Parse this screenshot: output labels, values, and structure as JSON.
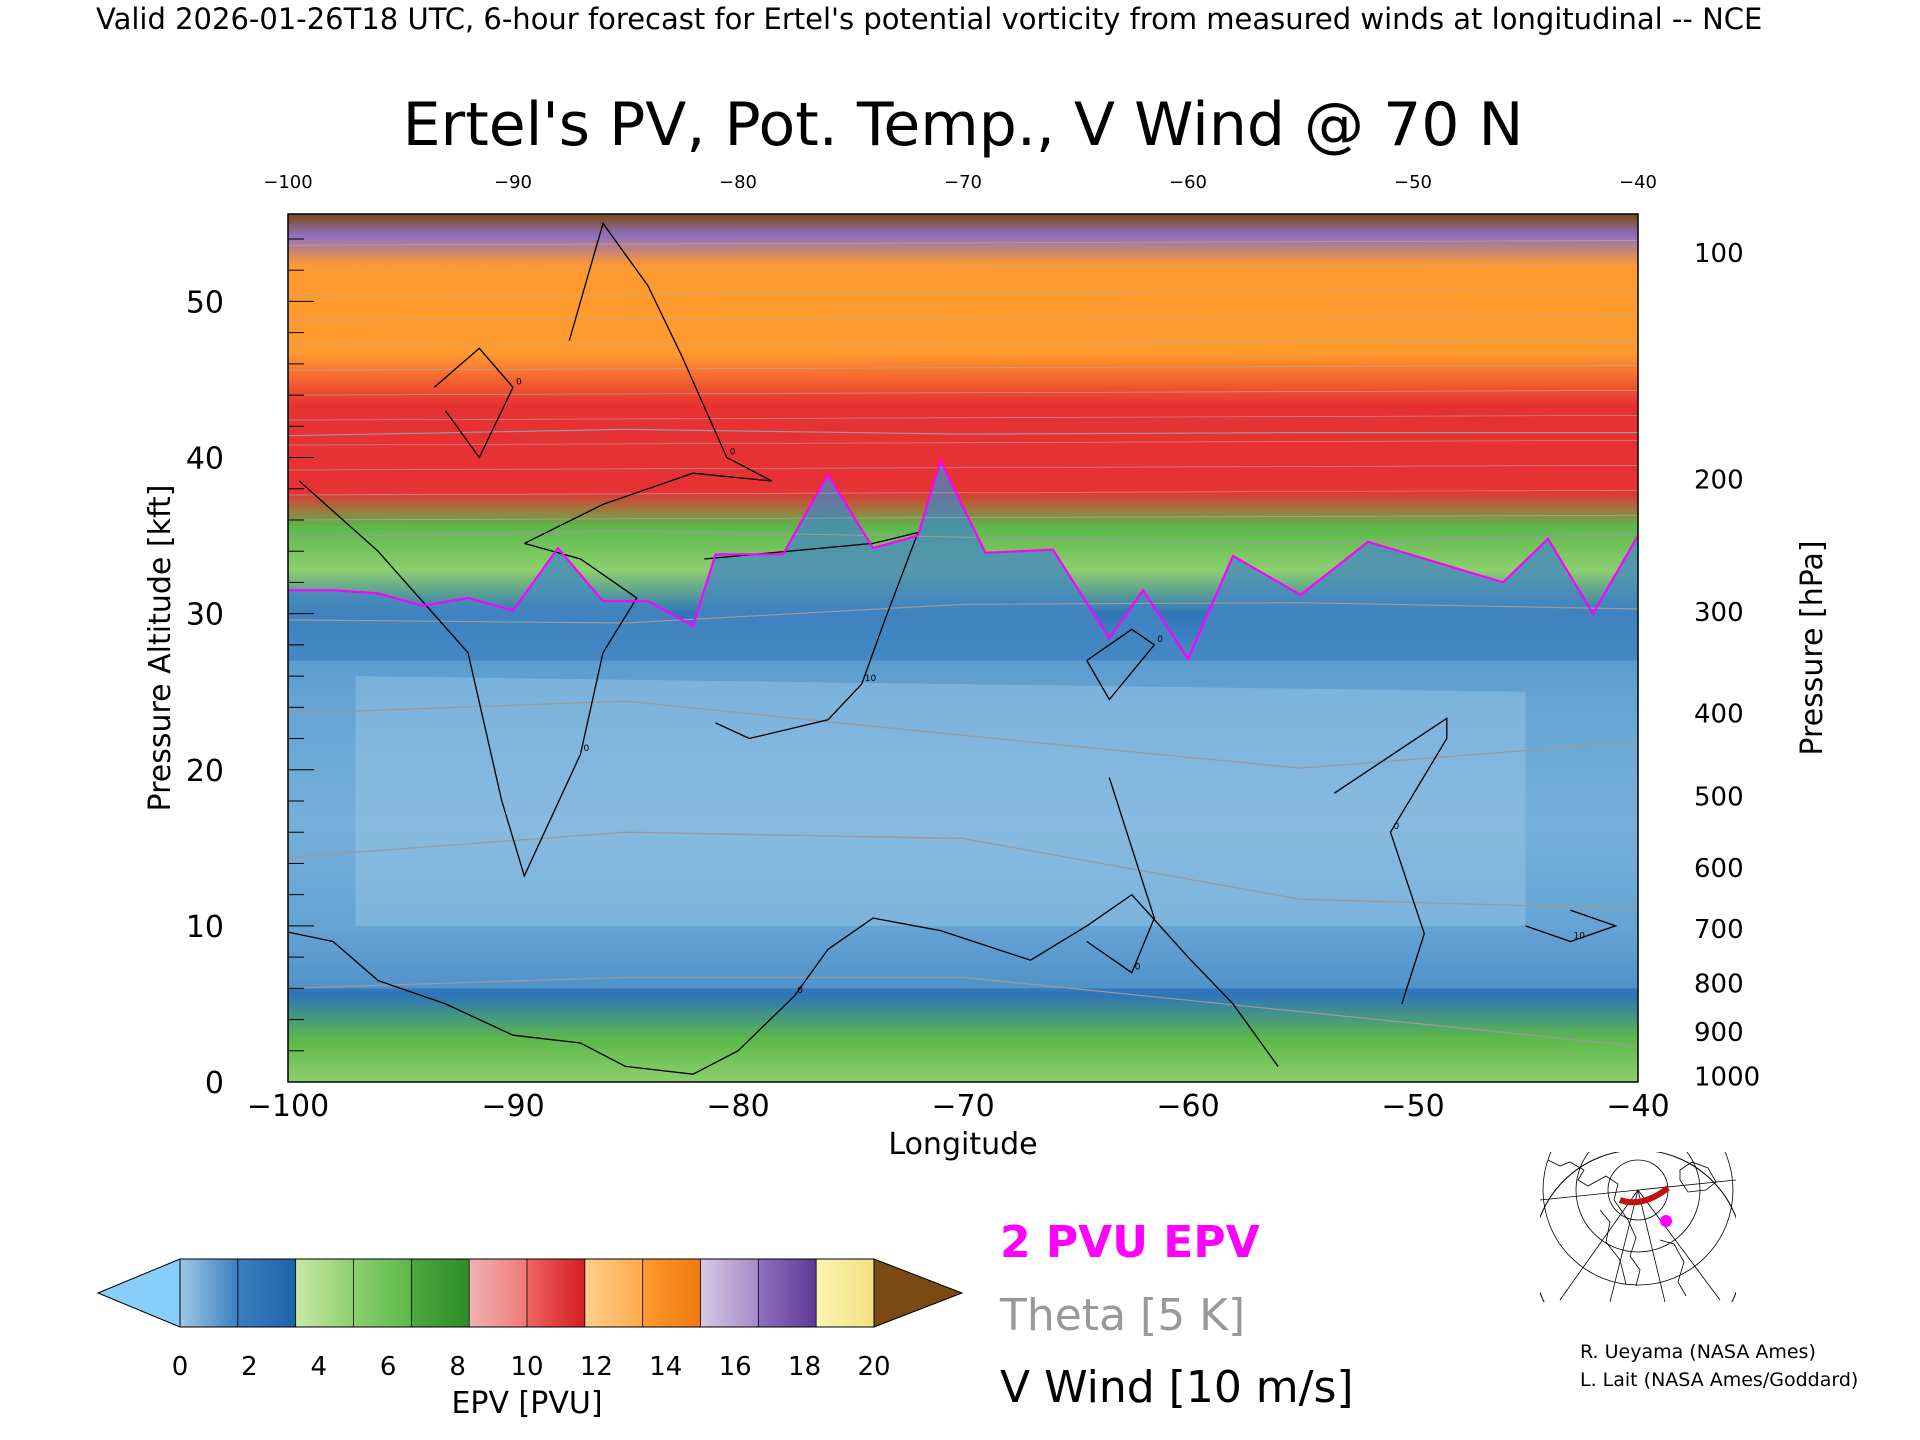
{
  "header": {
    "text": "Valid 2026-01-26T18 UTC, 6-hour forecast for Ertel's potential vorticity from measured winds at longitudinal -- NCE"
  },
  "chart_data": {
    "type": "heatmap",
    "title": "Ertel's PV, Pot. Temp., V Wind @ 70 N",
    "xlabel": "Longitude",
    "ylabel_left": "Pressure Altitude [kft]",
    "ylabel_right": "Pressure [hPa]",
    "xlim": [
      -100,
      -40
    ],
    "ylim_kft": [
      0,
      55.6
    ],
    "x_ticks": [
      "-100",
      "-90",
      "-80",
      "-70",
      "-60",
      "-50",
      "-40"
    ],
    "y_ticks_kft": [
      {
        "value": 0,
        "label": "0"
      },
      {
        "value": 10,
        "label": "10"
      },
      {
        "value": 20,
        "label": "20"
      },
      {
        "value": 30,
        "label": "30"
      },
      {
        "value": 40,
        "label": "40"
      },
      {
        "value": 50,
        "label": "50"
      }
    ],
    "y_ticks_pressure": [
      {
        "kft": 0.35,
        "label": "1000"
      },
      {
        "kft": 3.2,
        "label": "900"
      },
      {
        "kft": 6.3,
        "label": "800"
      },
      {
        "kft": 9.8,
        "label": "700"
      },
      {
        "kft": 13.7,
        "label": "600"
      },
      {
        "kft": 18.3,
        "label": "500"
      },
      {
        "kft": 23.6,
        "label": "400"
      },
      {
        "kft": 30.1,
        "label": "300"
      },
      {
        "kft": 38.6,
        "label": "200"
      },
      {
        "kft": 53.1,
        "label": "100"
      }
    ],
    "colorbar": {
      "label": "EPV [PVU]",
      "ticks": [
        "0",
        "2",
        "4",
        "6",
        "8",
        "10",
        "12",
        "14",
        "16",
        "18",
        "20"
      ],
      "under_color": "#87cefa",
      "over_color": "#7a4a12",
      "bins": [
        [
          "#9cc8e6",
          "#3a7fbf"
        ],
        [
          "#3a7fbf",
          "#1f63a8"
        ],
        [
          "#c9e8a8",
          "#8ccf6e"
        ],
        [
          "#8ccf6e",
          "#5cb84a"
        ],
        [
          "#4ca93c",
          "#2e8c2a"
        ],
        [
          "#f0b2b2",
          "#f07878"
        ],
        [
          "#f06464",
          "#d21e1e"
        ],
        [
          "#ffcf8a",
          "#ffa94d"
        ],
        [
          "#ff9a2e",
          "#f07a10"
        ],
        [
          "#d8c8e6",
          "#a48ac8"
        ],
        [
          "#9070c0",
          "#5c3a96"
        ],
        [
          "#fbf6b4",
          "#f2df82"
        ]
      ]
    },
    "legend": {
      "pv_label": "2 PVU EPV",
      "theta_label": "Theta [5 K]",
      "wind_label": "V Wind [10 m/s]"
    },
    "pv_2pvu_line_kft": [
      [
        -100,
        31.5
      ],
      [
        -98,
        31.5
      ],
      [
        -96,
        31.3
      ],
      [
        -94,
        30.5
      ],
      [
        -92,
        31.0
      ],
      [
        -90,
        30.2
      ],
      [
        -88,
        34.2
      ],
      [
        -86,
        30.8
      ],
      [
        -84,
        30.8
      ],
      [
        -82,
        29.2
      ],
      [
        -81,
        33.8
      ],
      [
        -78,
        33.8
      ],
      [
        -76,
        38.9
      ],
      [
        -74,
        34.2
      ],
      [
        -72,
        35.0
      ],
      [
        -71,
        39.8
      ],
      [
        -69,
        33.9
      ],
      [
        -66,
        34.1
      ],
      [
        -63.5,
        28.4
      ],
      [
        -62,
        31.5
      ],
      [
        -60,
        27.1
      ],
      [
        -58,
        33.7
      ],
      [
        -55,
        31.2
      ],
      [
        -52,
        34.6
      ],
      [
        -49,
        33.3
      ],
      [
        -46,
        32.0
      ],
      [
        -44,
        34.8
      ],
      [
        -42,
        30.0
      ],
      [
        -40,
        35.0
      ]
    ],
    "theta_contours": [
      {
        "level": 380,
        "points_kft": [
          [
            -100,
            41.4
          ],
          [
            -85,
            41.8
          ],
          [
            -70,
            41.5
          ],
          [
            -55,
            41.6
          ],
          [
            -40,
            41.6
          ]
        ]
      },
      {
        "level": 360,
        "points_kft": [
          [
            -100,
            34.9
          ],
          [
            -85,
            35.3
          ],
          [
            -70,
            34.9
          ],
          [
            -55,
            34.5
          ],
          [
            -40,
            35.1
          ]
        ]
      },
      {
        "level": 340,
        "points_kft": [
          [
            -100,
            29.6
          ],
          [
            -85,
            29.4
          ],
          [
            -70,
            30.6
          ],
          [
            -55,
            30.7
          ],
          [
            -40,
            30.3
          ]
        ]
      },
      {
        "level": 320,
        "points_kft": [
          [
            -100,
            23.6
          ],
          [
            -85,
            24.4
          ],
          [
            -70,
            22.2
          ],
          [
            -55,
            20.1
          ],
          [
            -40,
            21.8
          ]
        ]
      },
      {
        "level": 300,
        "points_kft": [
          [
            -100,
            14.4
          ],
          [
            -85,
            16.0
          ],
          [
            -70,
            15.6
          ],
          [
            -55,
            11.7
          ],
          [
            -40,
            11.1
          ]
        ]
      },
      {
        "level": 280,
        "points_kft": [
          [
            -100,
            6.0
          ],
          [
            -85,
            6.7
          ],
          [
            -70,
            6.7
          ],
          [
            -55,
            4.5
          ],
          [
            -40,
            2.3
          ]
        ]
      }
    ],
    "v_wind_contours": [
      {
        "label": "0",
        "points_kft": [
          [
            -99.5,
            38.5
          ],
          [
            -96,
            34
          ],
          [
            -92,
            27.5
          ],
          [
            -90.5,
            18
          ],
          [
            -89.5,
            13.2
          ],
          [
            -87,
            21
          ],
          [
            -86,
            27.5
          ],
          [
            -84.5,
            31
          ],
          [
            -87,
            33.5
          ],
          [
            -89.5,
            34.5
          ]
        ]
      },
      {
        "label": "0",
        "points_kft": [
          [
            -89.5,
            34.5
          ],
          [
            -86,
            37
          ],
          [
            -82,
            39
          ],
          [
            -78.5,
            38.5
          ],
          [
            -80.5,
            40
          ],
          [
            -82.5,
            46.5
          ],
          [
            -84,
            51
          ],
          [
            -86,
            55
          ],
          [
            -87.5,
            47.5
          ]
        ]
      },
      {
        "label": "0",
        "points_kft": [
          [
            -93.5,
            44.5
          ],
          [
            -91.5,
            47
          ],
          [
            -90,
            44.5
          ],
          [
            -91.5,
            40
          ],
          [
            -93,
            43
          ]
        ]
      },
      {
        "label": "10",
        "points_kft": [
          [
            -81.5,
            33.5
          ],
          [
            -74,
            34.5
          ],
          [
            -72,
            35.2
          ],
          [
            -73.5,
            29.5
          ],
          [
            -74.5,
            25.5
          ],
          [
            -76,
            23.2
          ],
          [
            -79.5,
            22
          ],
          [
            -81,
            23
          ]
        ]
      },
      {
        "label": "0",
        "points_kft": [
          [
            -100,
            9.6
          ],
          [
            -98,
            9
          ],
          [
            -96,
            6.5
          ],
          [
            -93,
            5
          ],
          [
            -90,
            3
          ],
          [
            -87,
            2.5
          ],
          [
            -85,
            1
          ],
          [
            -82,
            0.5
          ],
          [
            -80,
            2
          ],
          [
            -77.5,
            5.5
          ],
          [
            -76,
            8.5
          ],
          [
            -74,
            10.5
          ],
          [
            -71,
            9.7
          ],
          [
            -67,
            7.8
          ],
          [
            -64.5,
            10
          ],
          [
            -62.5,
            12
          ],
          [
            -60,
            8
          ],
          [
            -58,
            5
          ],
          [
            -56,
            1
          ]
        ]
      },
      {
        "label": "0",
        "points_kft": [
          [
            -64.5,
            27
          ],
          [
            -62.5,
            29
          ],
          [
            -61.5,
            28
          ],
          [
            -63.5,
            24.5
          ],
          [
            -64.5,
            27
          ]
        ]
      },
      {
        "label": "0",
        "points_kft": [
          [
            -63.5,
            19.5
          ],
          [
            -61.5,
            10.5
          ],
          [
            -62.5,
            7
          ],
          [
            -64.5,
            9
          ]
        ]
      },
      {
        "label": "0",
        "points_kft": [
          [
            -53.5,
            18.5
          ],
          [
            -48.5,
            23.3
          ],
          [
            -48.5,
            22
          ],
          [
            -51,
            16
          ],
          [
            -49.5,
            9.5
          ],
          [
            -50.5,
            5
          ]
        ]
      },
      {
        "label": "10",
        "points_kft": [
          [
            -43,
            11
          ],
          [
            -41,
            10
          ],
          [
            -43,
            9
          ],
          [
            -45,
            10
          ]
        ]
      }
    ]
  },
  "inset": {
    "label": "locator-map"
  },
  "credits": {
    "line1": "R. Ueyama (NASA Ames)",
    "line2": "L. Lait (NASA Ames/Goddard)"
  }
}
